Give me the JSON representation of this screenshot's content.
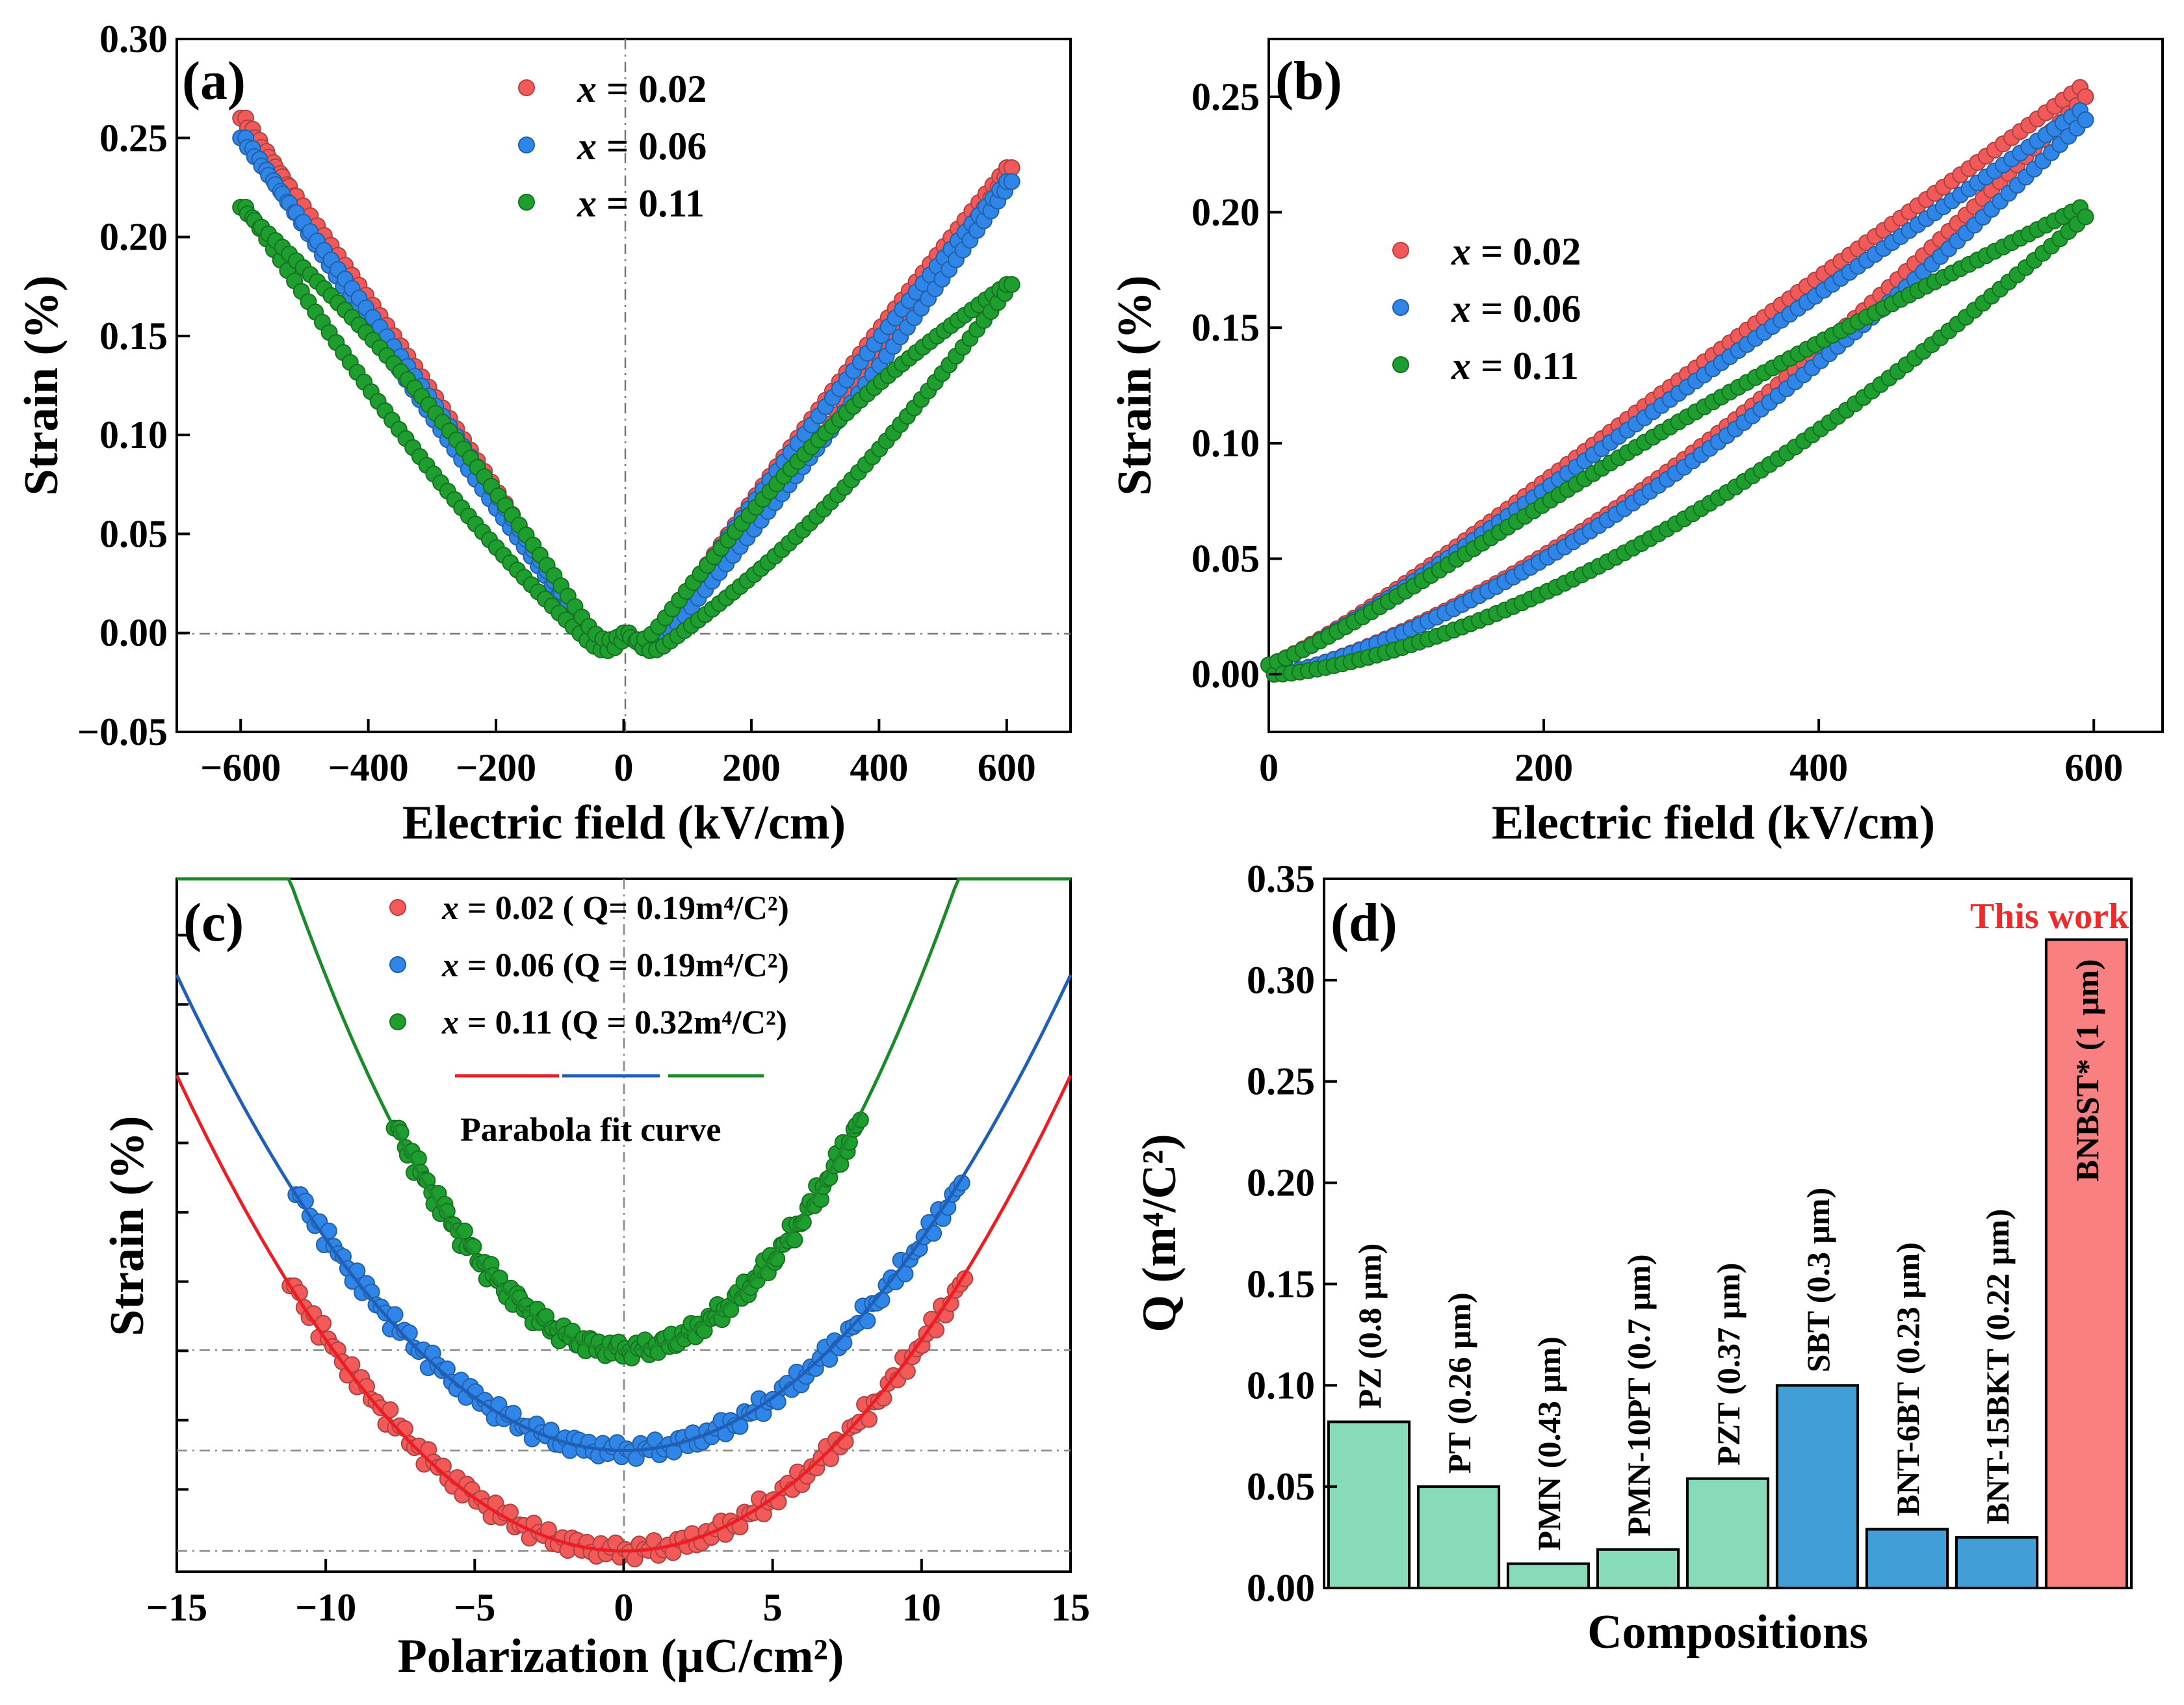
{
  "chart_data": [
    {
      "id": "a",
      "type": "scatter",
      "panel_label": "(a)",
      "xlabel": "Electric field (kV/cm)",
      "ylabel": "Strain (%)",
      "xlim": [
        -700,
        700
      ],
      "ylim": [
        -0.05,
        0.3
      ],
      "xticks": [
        -600,
        -400,
        -200,
        0,
        200,
        400,
        600
      ],
      "xtick_labels": [
        "−600",
        "−400",
        "−200",
        "0",
        "200",
        "400",
        "600"
      ],
      "yticks": [
        -0.05,
        0.0,
        0.05,
        0.1,
        0.15,
        0.2,
        0.25,
        0.3
      ],
      "ytick_labels": [
        "−0.05",
        "0.00",
        "0.05",
        "0.10",
        "0.15",
        "0.20",
        "0.25",
        "0.30"
      ],
      "legend_position": "top-center",
      "series": [
        {
          "name_prefix": "x",
          "name_suffix": " = 0.02",
          "color": "#f25a5a",
          "s_neg": 0.26,
          "s_pos": 0.235,
          "hyst": 0.012,
          "x_min": -600,
          "x_max": 600
        },
        {
          "name_prefix": "x",
          "name_suffix": " = 0.06",
          "color": "#2f86e8",
          "s_neg": 0.25,
          "s_pos": 0.228,
          "hyst": 0.012,
          "x_min": -600,
          "x_max": 600
        },
        {
          "name_prefix": "x",
          "name_suffix": " = 0.11",
          "color": "#1e9e2e",
          "s_neg": 0.215,
          "s_pos": 0.176,
          "hyst": 0.035,
          "x_min": -600,
          "x_max": 600
        }
      ]
    },
    {
      "id": "b",
      "type": "scatter",
      "panel_label": "(b)",
      "xlabel": "Electric field (kV/cm)",
      "ylabel": "Strain (%)",
      "xlim": [
        0,
        650
      ],
      "ylim": [
        -0.025,
        0.275
      ],
      "xticks": [
        0,
        200,
        400,
        600
      ],
      "xtick_labels": [
        "0",
        "200",
        "400",
        "600"
      ],
      "yticks": [
        0.0,
        0.05,
        0.1,
        0.15,
        0.2,
        0.25
      ],
      "ytick_labels": [
        "0.00",
        "0.05",
        "0.10",
        "0.15",
        "0.20",
        "0.25"
      ],
      "legend_position": "upper-left",
      "series": [
        {
          "name_prefix": "x",
          "name_suffix": " = 0.02",
          "color": "#f25a5a",
          "s_max": 0.25,
          "hyst": 0.03,
          "x_max": 590
        },
        {
          "name_prefix": "x",
          "name_suffix": " = 0.06",
          "color": "#2f86e8",
          "s_max": 0.24,
          "hyst": 0.028,
          "x_max": 590
        },
        {
          "name_prefix": "x",
          "name_suffix": " = 0.11",
          "color": "#1e9e2e",
          "s_max": 0.198,
          "hyst": 0.038,
          "x_max": 590
        }
      ]
    },
    {
      "id": "c",
      "type": "scatter",
      "panel_label": "(c)",
      "xlabel": "Polarization (μC/cm²)",
      "ylabel": "Strain (%)",
      "xlim": [
        -15,
        15
      ],
      "ylim": [
        0,
        1
      ],
      "xticks": [
        -15,
        -10,
        -5,
        0,
        5,
        10,
        15
      ],
      "xtick_labels": [
        "−15",
        "−10",
        "−5",
        "0",
        "5",
        "10",
        "15"
      ],
      "legend_position": "top-center",
      "fit_label": "Parabola fit curve",
      "series": [
        {
          "name_prefix": "x",
          "name_suffix": " = 0.02 ( Q= 0.19m⁴/C²)",
          "color": "#f25a5a",
          "offset": 0.03,
          "curv": 0.00305,
          "p_min": -11.2,
          "p_max": 11.3
        },
        {
          "name_prefix": "x",
          "name_suffix": " = 0.06 (Q = 0.19m⁴/C²)",
          "color": "#2f86e8",
          "offset": 0.175,
          "curv": 0.00305,
          "p_min": -11.0,
          "p_max": 11.2
        },
        {
          "name_prefix": "x",
          "name_suffix": " = 0.11 (Q = 0.32m⁴/C²)",
          "color": "#1e9e2e",
          "offset": 0.32,
          "curv": 0.0054,
          "p_min": -7.7,
          "p_max": 7.8
        }
      ]
    },
    {
      "id": "d",
      "type": "bar",
      "panel_label": "(d)",
      "xlabel": "Compositions",
      "ylabel": "Q (m⁴/C²)",
      "ylim": [
        0,
        0.35
      ],
      "yticks": [
        0.0,
        0.05,
        0.1,
        0.15,
        0.2,
        0.25,
        0.3,
        0.35
      ],
      "ytick_labels": [
        "0.00",
        "0.05",
        "0.10",
        "0.15",
        "0.20",
        "0.25",
        "0.30",
        "0.35"
      ],
      "annotation": "This work",
      "categories": [
        "PZ (0.8 μm)",
        "PT (0.26 μm)",
        "PMN (0.43 μm)",
        "PMN-10PT (0.7 μm)",
        "PZT (0.37 μm)",
        "SBT (0.3 μm)",
        "BNT-6BT (0.23 μm)",
        "BNT-15BKT (0.22 μm)",
        "BNBST* (1 μm)"
      ],
      "values": [
        0.082,
        0.05,
        0.012,
        0.019,
        0.054,
        0.1,
        0.029,
        0.025,
        0.32
      ],
      "colors": [
        "#88dbb9",
        "#88dbb9",
        "#88dbb9",
        "#88dbb9",
        "#88dbb9",
        "#429ed6",
        "#429ed6",
        "#429ed6",
        "#f98080"
      ]
    }
  ]
}
